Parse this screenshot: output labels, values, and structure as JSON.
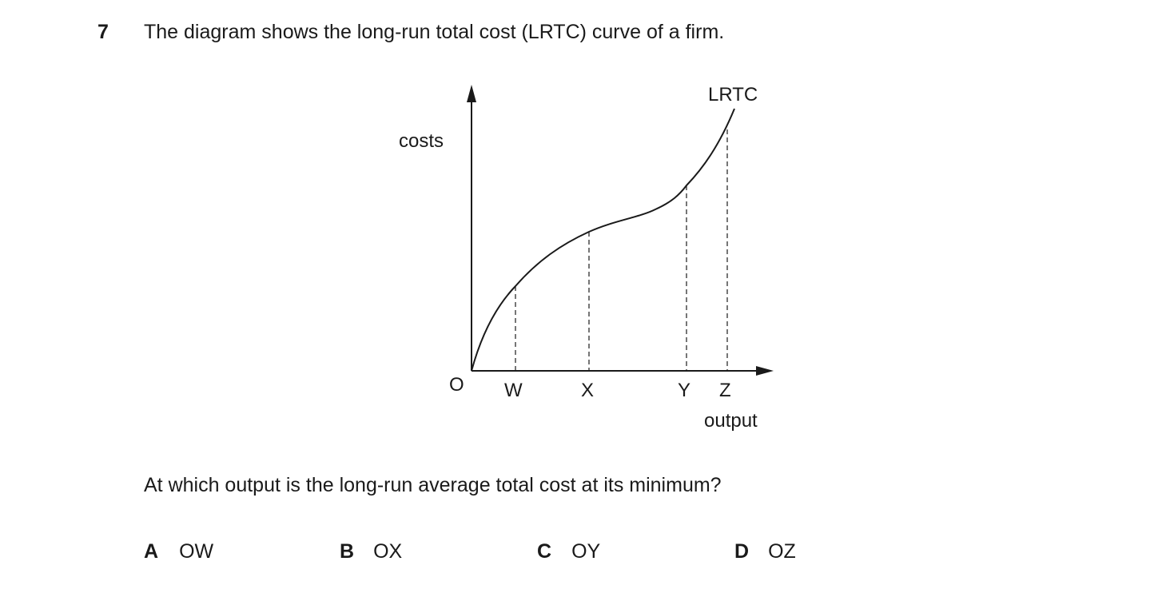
{
  "question": {
    "number": "7",
    "stem": "The diagram shows the long-run total cost (LRTC) curve of a firm.",
    "prompt": "At which output is the long-run average total cost at its minimum?"
  },
  "diagram": {
    "y_axis_label": "costs",
    "x_axis_label": "output",
    "curve_label": "LRTC",
    "origin_label": "O",
    "points": [
      {
        "label": "W"
      },
      {
        "label": "X"
      },
      {
        "label": "Y"
      },
      {
        "label": "Z"
      }
    ]
  },
  "options": [
    {
      "letter": "A",
      "value": "OW"
    },
    {
      "letter": "B",
      "value": "OX"
    },
    {
      "letter": "C",
      "value": "OY"
    },
    {
      "letter": "D",
      "value": "OZ"
    }
  ]
}
